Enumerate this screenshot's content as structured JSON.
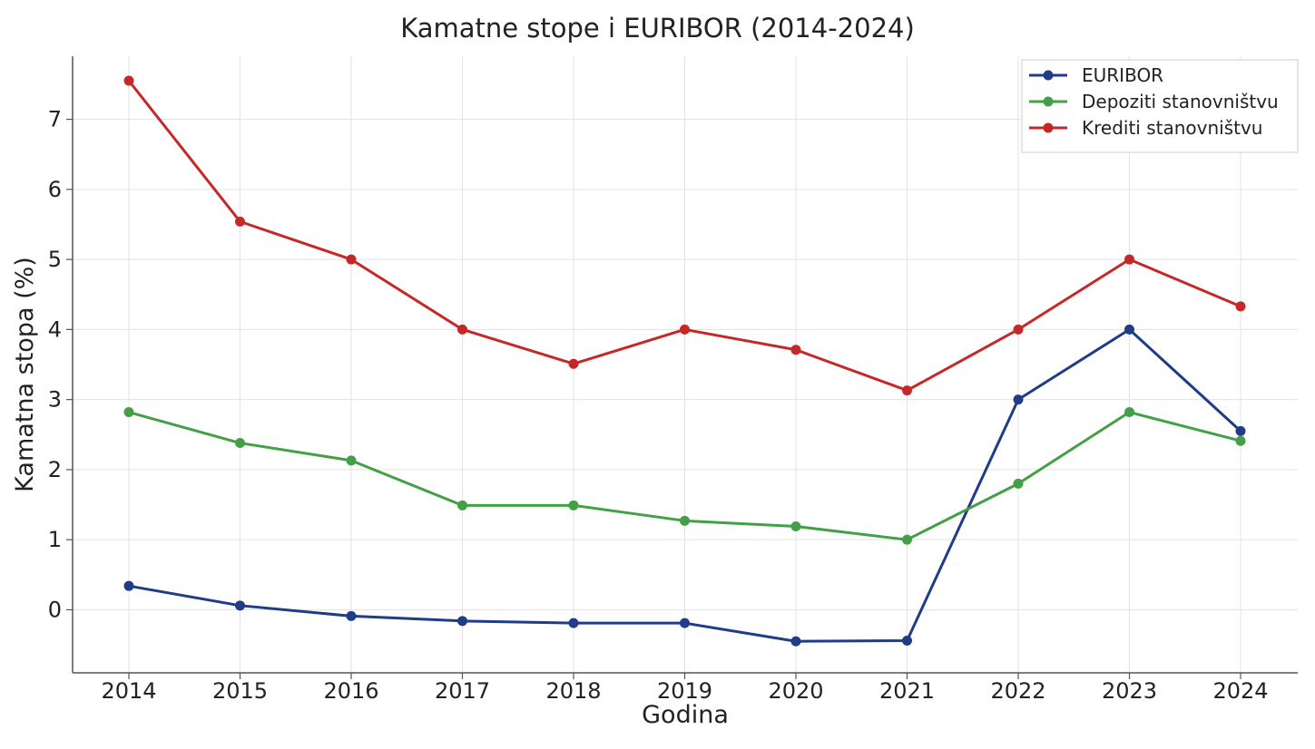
{
  "chart_data": {
    "type": "line",
    "title": "Kamatne stope i EURIBOR (2014-2024)",
    "xlabel": "Godina",
    "ylabel": "Kamatna stopa (%)",
    "x": [
      2014,
      2015,
      2016,
      2017,
      2018,
      2019,
      2020,
      2021,
      2022,
      2023,
      2024
    ],
    "yticks": [
      0,
      1,
      2,
      3,
      4,
      5,
      6,
      7
    ],
    "ylim": [
      -0.9,
      7.9
    ],
    "grid": true,
    "legend_position": "top-right",
    "series": [
      {
        "name": "EURIBOR",
        "color": "#1f3c88",
        "values": [
          0.34,
          0.06,
          -0.09,
          -0.16,
          -0.19,
          -0.19,
          -0.45,
          -0.44,
          3.0,
          4.0,
          2.55
        ]
      },
      {
        "name": "Depoziti stanovništvu",
        "color": "#43a047",
        "values": [
          2.82,
          2.38,
          2.13,
          1.49,
          1.49,
          1.27,
          1.19,
          1.0,
          1.8,
          2.82,
          2.41
        ]
      },
      {
        "name": "Krediti stanovništvu",
        "color": "#c62828",
        "values": [
          7.55,
          5.54,
          5.0,
          4.0,
          3.51,
          4.0,
          3.71,
          3.13,
          4.0,
          5.0,
          4.33
        ]
      }
    ]
  }
}
